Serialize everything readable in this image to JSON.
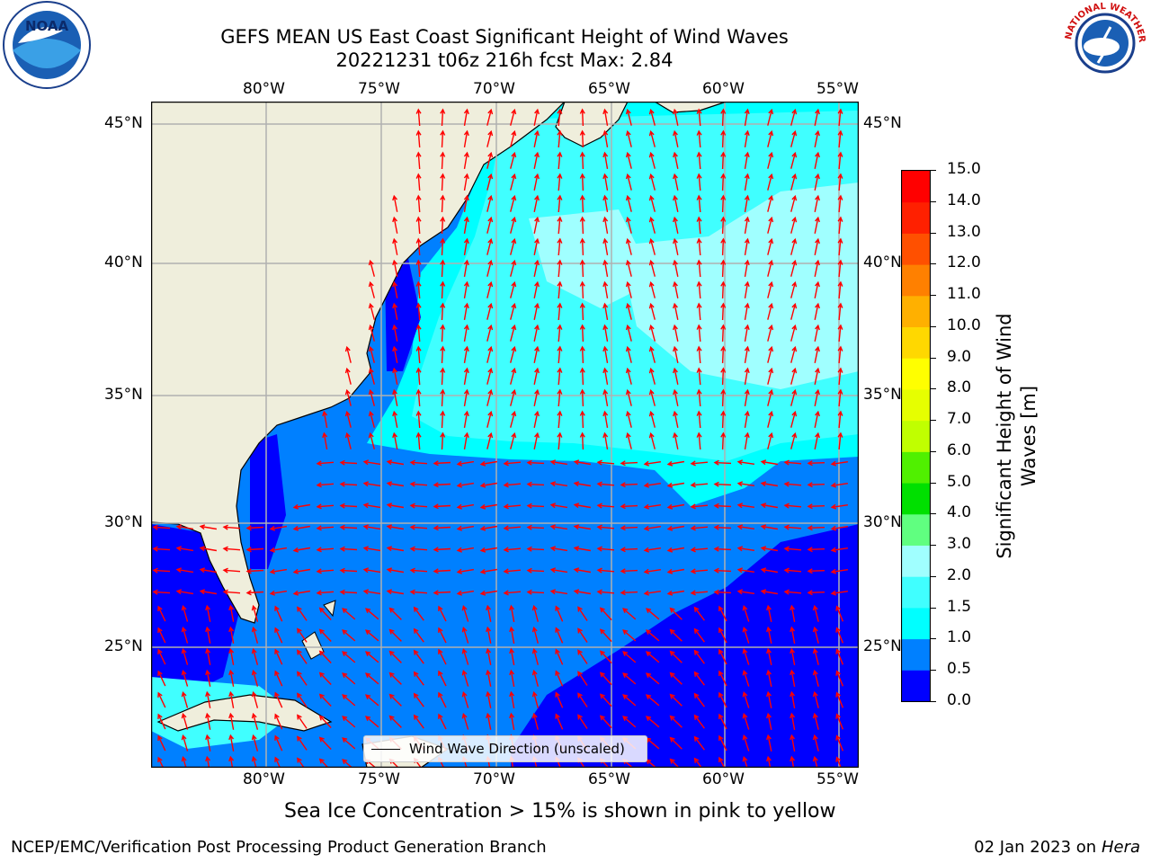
{
  "title": {
    "line1": "GEFS MEAN US East Coast Significant Height of Wind Waves",
    "line2": "20221231 t06z 216h fcst   Max: 2.84"
  },
  "logos": {
    "noaa": "NOAA",
    "nws": "NATIONAL WEATHER SERVICE"
  },
  "axes": {
    "lon_labels": [
      "80°W",
      "75°W",
      "70°W",
      "65°W",
      "60°W",
      "55°W"
    ],
    "lat_labels": [
      "45°N",
      "40°N",
      "35°N",
      "30°N",
      "25°N"
    ]
  },
  "legend": {
    "label": "Wind Wave Direction (unscaled)"
  },
  "colorbar": {
    "label": "Significant Height of Wind Waves [m]",
    "ticks": [
      "0.0",
      "0.5",
      "1.0",
      "1.5",
      "2.0",
      "3.0",
      "4.0",
      "5.0",
      "6.0",
      "7.0",
      "8.0",
      "9.0",
      "10.0",
      "11.0",
      "12.0",
      "13.0",
      "14.0",
      "15.0"
    ],
    "colors": [
      "#0000ff",
      "#0080ff",
      "#00ffff",
      "#40ffff",
      "#a0ffff",
      "#60ff80",
      "#00e000",
      "#50f000",
      "#c0ff00",
      "#e6ff00",
      "#ffff00",
      "#ffd800",
      "#ffb000",
      "#ff8000",
      "#ff5000",
      "#ff2000",
      "#ff0000"
    ]
  },
  "subtitle": "Sea Ice Concentration > 15% is shown in pink to yellow",
  "footer": {
    "left": "NCEP/EMC/Verification Post Processing Product Generation Branch",
    "date": "02 Jan 2023 on ",
    "machine": "Hera"
  },
  "colors": {
    "land": "#efeedc",
    "grid": "#b0b0b0",
    "arrow": "#ff0000"
  }
}
